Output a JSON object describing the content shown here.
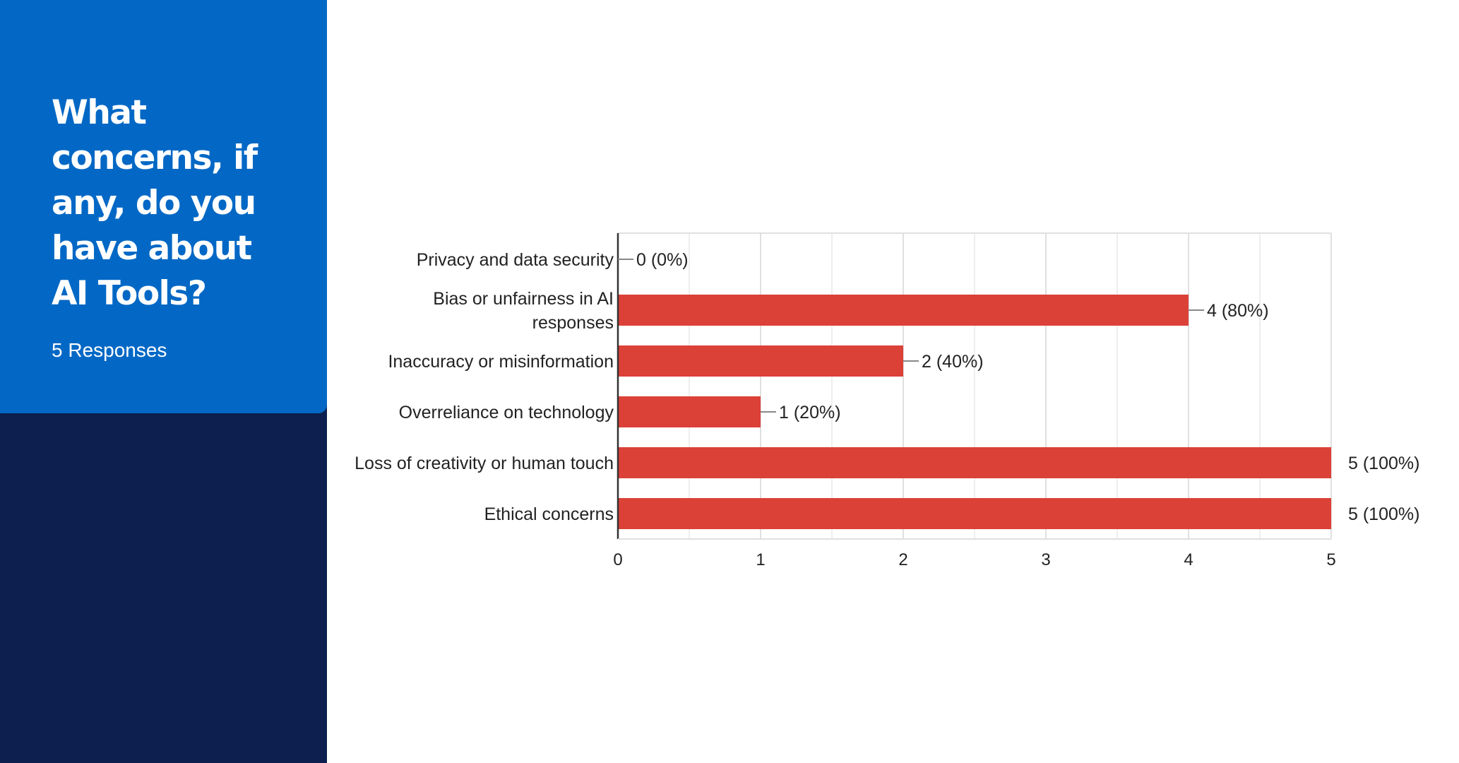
{
  "question": {
    "title": "What concerns, if any, do you have about AI Tools?",
    "responses_label": "5 Responses"
  },
  "colors": {
    "card": "#0368c5",
    "sidebar": "#0c1f4e",
    "bar": "#db4137"
  },
  "chart_data": {
    "type": "bar",
    "orientation": "horizontal",
    "categories": [
      [
        "Privacy and data security"
      ],
      [
        "Bias or unfairness in AI",
        "responses"
      ],
      [
        "Inaccuracy or misinformation"
      ],
      [
        "Overreliance on technology"
      ],
      [
        "Loss of creativity or human touch"
      ],
      [
        "Ethical concerns"
      ]
    ],
    "values": [
      0,
      4,
      2,
      1,
      5,
      5
    ],
    "data_labels": [
      "0 (0%)",
      "4 (80%)",
      "2 (40%)",
      "1 (20%)",
      "5 (100%)",
      "5 (100%)"
    ],
    "xlim": [
      0,
      5
    ],
    "x_ticks": [
      "0",
      "1",
      "2",
      "3",
      "4",
      "5"
    ],
    "grid": true
  }
}
